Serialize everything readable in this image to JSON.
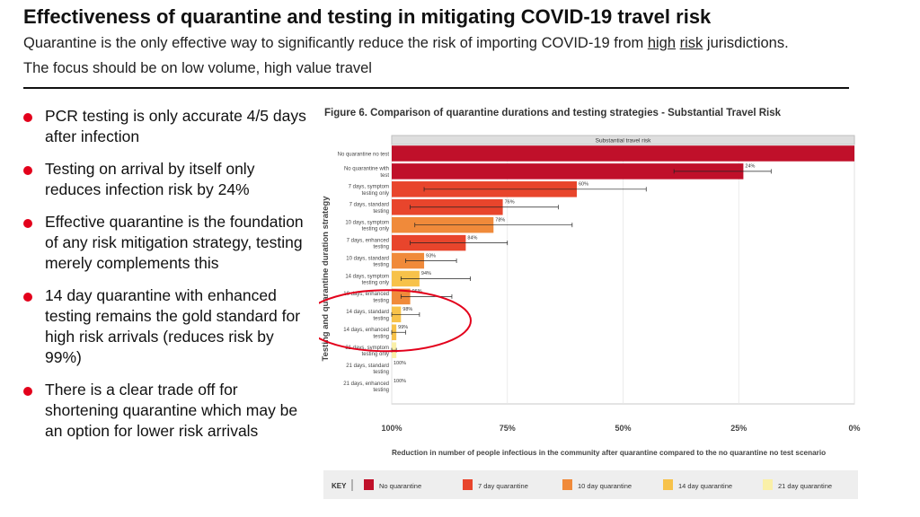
{
  "slide": {
    "title": "Effectiveness of quarantine and testing in mitigating COVID-19 travel risk",
    "subtitle_before": "Quarantine is the only effective way to significantly reduce the risk of importing COVID-19 from ",
    "subtitle_link1": "high",
    "subtitle_link2": "risk",
    "subtitle_after": " jurisdictions. The focus should be on low volume, high value travel"
  },
  "bullets": [
    "PCR testing is only accurate 4/5 days after infection",
    "Testing on arrival by itself only reduces infection risk by 24%",
    "Effective quarantine is the foundation of any risk mitigation strategy, testing merely complements this",
    "14 day quarantine with enhanced testing remains the gold standard for high risk arrivals (reduces risk by 99%)",
    "There is a clear trade off for shortening quarantine which may be an option for lower risk arrivals"
  ],
  "colors": {
    "accent": "#e3001b",
    "no_quarantine": "#c0102a",
    "q7": "#e8452c",
    "q10": "#f08a3a",
    "q14": "#f7c24a",
    "q21": "#faf0a8",
    "highlight_ellipse": "#e3001b"
  },
  "chart_data": {
    "type": "bar",
    "orientation": "horizontal",
    "title": "Figure 6. Comparison of quarantine durations and testing strategies - Substantial Travel Risk",
    "panel_label": "Substantial travel risk",
    "ylabel": "Testing and quarantine duration strategy",
    "xlabel": "Reduction in number of people infectious in the community after quarantine compared to the no quarantine no test scenario",
    "xlim": [
      100,
      0
    ],
    "xticks": [
      "100%",
      "75%",
      "50%",
      "25%",
      "0%"
    ],
    "xtick_values": [
      100,
      75,
      50,
      25,
      0
    ],
    "categories": [
      [
        "No quarantine no test"
      ],
      [
        "No quarantine with",
        "test"
      ],
      [
        "7 days, symptom",
        "testing only"
      ],
      [
        "7 days, standard",
        "testing"
      ],
      [
        "10 days, symptom",
        "testing only"
      ],
      [
        "7 days, enhanced",
        "testing"
      ],
      [
        "10 days, standard",
        "testing"
      ],
      [
        "14 days, symptom",
        "testing only"
      ],
      [
        "10 days, enhanced",
        "testing"
      ],
      [
        "14 days, standard",
        "testing"
      ],
      [
        "14 days, enhanced",
        "testing"
      ],
      [
        "21 days, symptom",
        "testing only"
      ],
      [
        "21 days, standard",
        "testing"
      ],
      [
        "21 days, enhanced",
        "testing"
      ]
    ],
    "groups": [
      "none",
      "none",
      "7",
      "7",
      "10",
      "7",
      "10",
      "14",
      "10",
      "14",
      "14",
      "21",
      "21",
      "21"
    ],
    "values": [
      0,
      24,
      60,
      76,
      78,
      84,
      93,
      94,
      96,
      98,
      99,
      99,
      100,
      100
    ],
    "data_labels": [
      "",
      "24%",
      "60%",
      "76%",
      "78%",
      "84%",
      "93%",
      "94%",
      "96%",
      "98%",
      "99%",
      "",
      "100%",
      "100%"
    ],
    "error_low": [
      null,
      18,
      45,
      64,
      61,
      75,
      86,
      83,
      87,
      94,
      97,
      99,
      null,
      null
    ],
    "error_high": [
      null,
      39,
      93,
      96,
      95,
      96,
      97,
      98,
      98,
      100,
      100,
      100,
      null,
      null
    ],
    "highlighted_categories": [
      9,
      10
    ],
    "legend": {
      "key_label": "KEY",
      "placement": "bottom",
      "items": [
        {
          "label": "No quarantine",
          "group": "none"
        },
        {
          "label": "7 day quarantine",
          "group": "7"
        },
        {
          "label": "10 day quarantine",
          "group": "10"
        },
        {
          "label": "14 day quarantine",
          "group": "14"
        },
        {
          "label": "21 day quarantine",
          "group": "21"
        }
      ]
    }
  }
}
